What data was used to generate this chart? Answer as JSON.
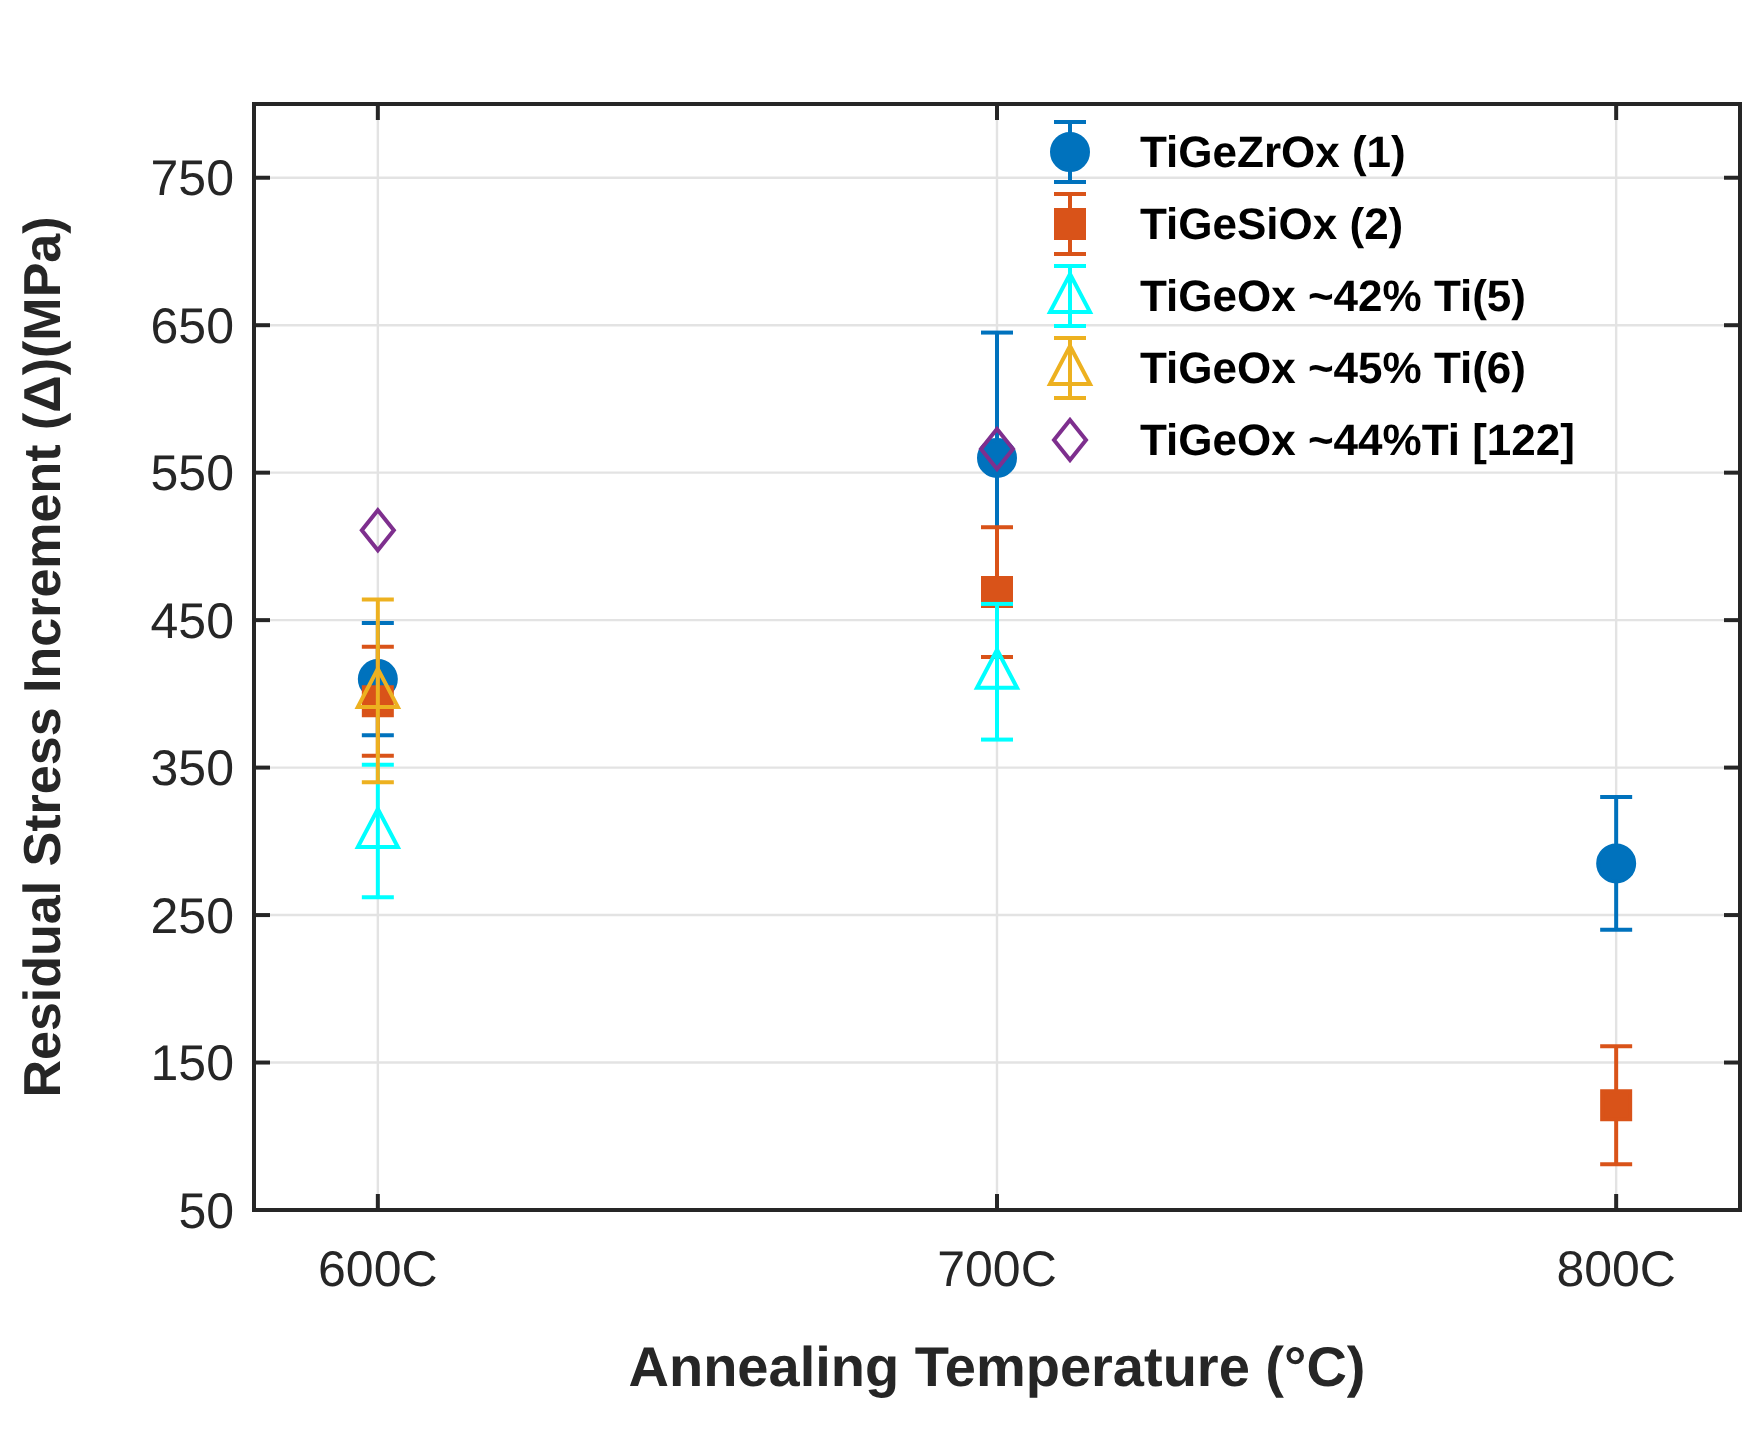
{
  "chart_data": {
    "type": "scatter",
    "xlabel": "Annealing Temperature (°C)",
    "ylabel": "Residual Stress Increment (Δ)(MPa)",
    "x": [
      600,
      700,
      800
    ],
    "xlim": [
      580,
      820
    ],
    "xticks": [
      {
        "value": 600,
        "label": "600C"
      },
      {
        "value": 700,
        "label": "700C"
      },
      {
        "value": 800,
        "label": "800C"
      }
    ],
    "ylim": [
      50,
      800
    ],
    "yticks": [
      50,
      150,
      250,
      350,
      450,
      550,
      650,
      750
    ],
    "grid": true,
    "legend": "top right",
    "series": [
      {
        "name": "TiGeZrOx (1)",
        "color": "#0072bd",
        "marker": "circle",
        "values": [
          410,
          560,
          285
        ],
        "errors": [
          38,
          85,
          45
        ]
      },
      {
        "name": "TiGeSiOx (2)",
        "color": "#d95319",
        "marker": "square",
        "values": [
          395,
          469,
          121
        ],
        "errors": [
          37,
          44,
          40
        ]
      },
      {
        "name": "TiGeOx ~42% Ti(5)",
        "color": "#00ffff",
        "marker": "triangle",
        "values": [
          307,
          415,
          null
        ],
        "errors": [
          45,
          46,
          null
        ]
      },
      {
        "name": "TiGeOx ~45% Ti(6)",
        "color": "#edb120",
        "marker": "triangle",
        "values": [
          402,
          null,
          null
        ],
        "errors": [
          62,
          null,
          null
        ]
      },
      {
        "name": "TiGeOx ~44%Ti [122]",
        "color": "#7e2f8e",
        "marker": "diamond",
        "values": [
          511,
          566,
          null
        ]
      }
    ]
  }
}
